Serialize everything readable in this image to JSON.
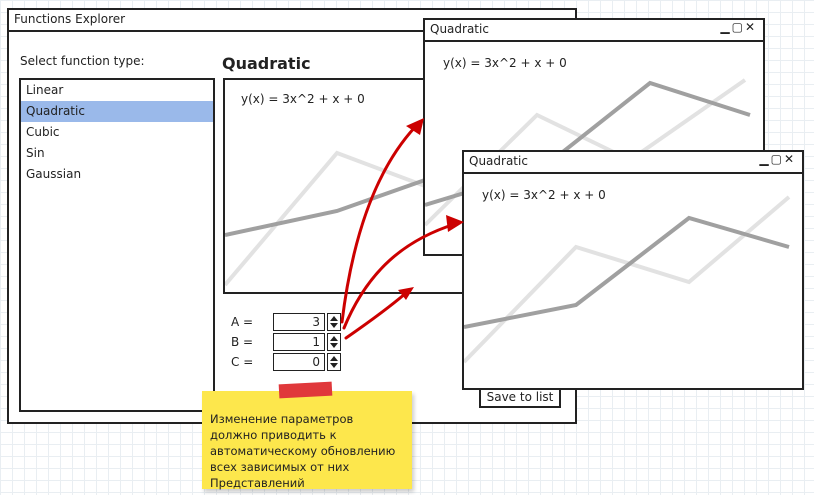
{
  "main_window": {
    "title": "Functions Explorer",
    "select_label": "Select function type:",
    "function_types": [
      {
        "label": "Linear",
        "selected": false
      },
      {
        "label": "Quadratic",
        "selected": true
      },
      {
        "label": "Cubic",
        "selected": false
      },
      {
        "label": "Sin",
        "selected": false
      },
      {
        "label": "Gaussian",
        "selected": false
      }
    ],
    "selected_title": "Quadratic",
    "formula": "y(x) = 3x^2 + x + 0",
    "params": [
      {
        "label": "A =",
        "value": "3"
      },
      {
        "label": "B =",
        "value": "1"
      },
      {
        "label": "C =",
        "value": "0"
      }
    ],
    "save_button": "Save to list"
  },
  "view_windows": [
    {
      "title": "Quadratic",
      "formula": "y(x) = 3x^2 + x + 0"
    },
    {
      "title": "Quadratic",
      "formula": "y(x) = 3x^2 + x + 0"
    }
  ],
  "note": {
    "text": "Изменение параметров должно приводить к автоматическому обновлению всех зависимых от них Представлений"
  },
  "colors": {
    "selection": "#9ab9ea",
    "arrow": "#cc0000",
    "note": "#fde74c",
    "tape": "#e0383b",
    "line_dark": "#a0a0a0",
    "line_light": "#e2e2e2"
  }
}
